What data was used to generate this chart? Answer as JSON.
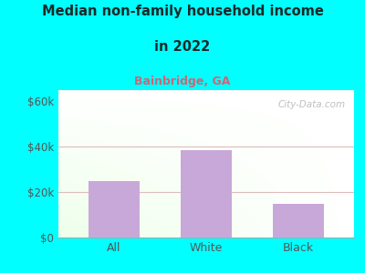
{
  "categories": [
    "All",
    "White",
    "Black"
  ],
  "values": [
    25000,
    38500,
    15000
  ],
  "bar_color": "#c8a8d8",
  "title_line1": "Median non-family household income",
  "title_line2": "in 2022",
  "subtitle": "Bainbridge, GA",
  "subtitle_color": "#cc6677",
  "title_color": "#1a2a2a",
  "background_color": "#00ffff",
  "yticks": [
    0,
    20000,
    40000,
    60000
  ],
  "ytick_labels": [
    "$0",
    "$20k",
    "$40k",
    "$60k"
  ],
  "ylim": [
    0,
    65000
  ],
  "watermark": "City-Data.com",
  "grid_color": "#ddbbbb",
  "tick_color": "#555555",
  "spine_color": "#aaaaaa"
}
